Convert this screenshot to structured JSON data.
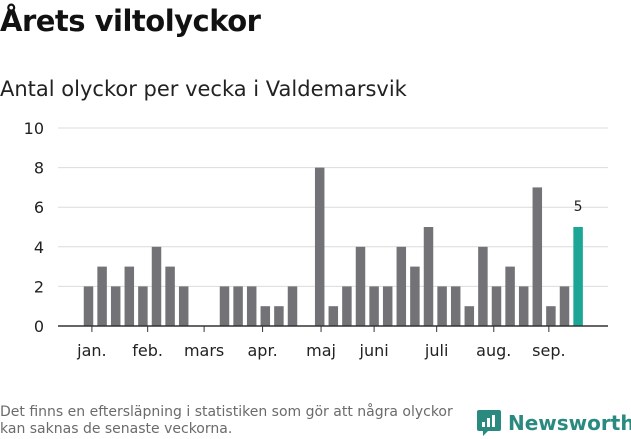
{
  "title": "Årets viltolyckor",
  "subtitle": "Antal olyckor per vecka i Valdemarsvik",
  "footnote": "Det finns en eftersläpning i statistiken som gör att några olyckor kan saknas de senaste veckorna.",
  "brand": "Newsworthy",
  "colors": {
    "bar": "#737377",
    "highlight": "#1ba696",
    "grid": "#dcdcdc",
    "axis": "#333333",
    "brand": "#2a8a80"
  },
  "chart_data": {
    "type": "bar",
    "ylim": [
      0,
      10
    ],
    "yticks": [
      0,
      2,
      4,
      6,
      8,
      10
    ],
    "grid": true,
    "x": [
      2,
      3,
      4,
      5,
      6,
      7,
      8,
      9,
      10,
      11,
      12,
      13,
      14,
      15,
      16,
      17,
      18,
      19,
      20,
      21,
      22,
      23,
      24,
      25,
      26,
      27,
      28,
      29,
      30,
      31,
      32,
      33,
      34,
      35,
      36,
      37,
      38
    ],
    "values": [
      2,
      3,
      2,
      3,
      2,
      4,
      3,
      2,
      0,
      0,
      2,
      2,
      2,
      1,
      1,
      2,
      0,
      8,
      1,
      2,
      4,
      2,
      2,
      4,
      3,
      5,
      2,
      2,
      1,
      4,
      2,
      3,
      2,
      7,
      1,
      2,
      5
    ],
    "highlight_last": true,
    "annotation": {
      "index": 36,
      "text": "5"
    },
    "month_labels": [
      {
        "label": "jan.",
        "x": 2.25
      },
      {
        "label": "feb.",
        "x": 6.35
      },
      {
        "label": "mars",
        "x": 10.5
      },
      {
        "label": "apr.",
        "x": 14.8
      },
      {
        "label": "maj",
        "x": 19.1
      },
      {
        "label": "juni",
        "x": 23.0
      },
      {
        "label": "juli",
        "x": 27.6
      },
      {
        "label": "aug.",
        "x": 31.8
      },
      {
        "label": "sep.",
        "x": 35.85
      }
    ]
  }
}
